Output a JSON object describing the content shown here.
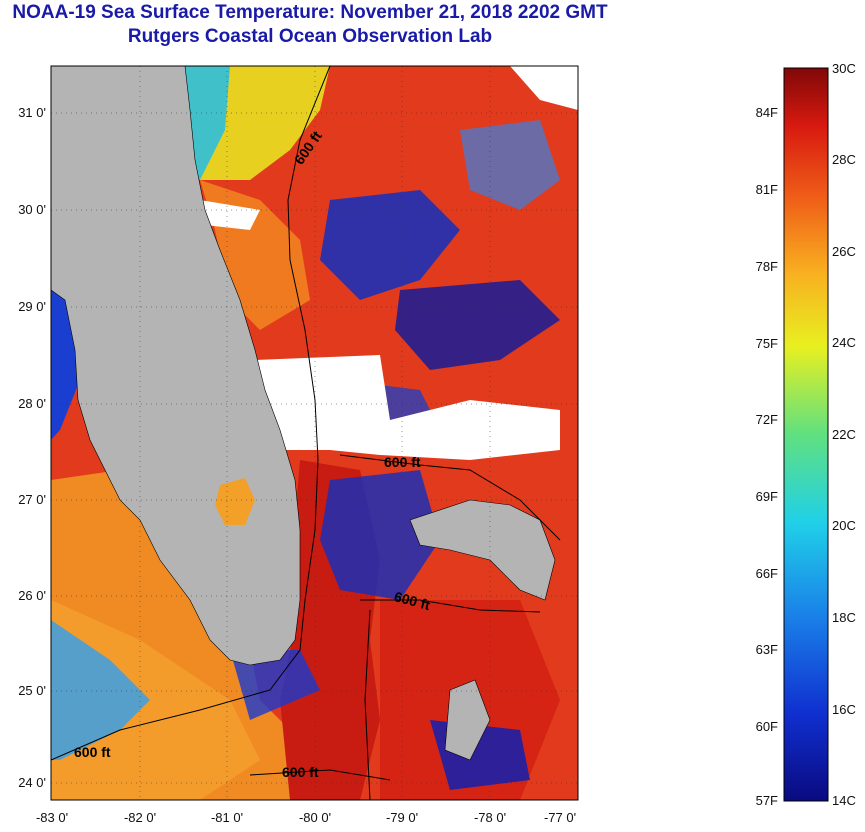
{
  "header": {
    "title": "NOAA-19 Sea Surface Temperature:  November 21, 2018 2202 GMT",
    "subtitle": "Rutgers Coastal Ocean Observation Lab"
  },
  "map": {
    "lat_ticks": [
      "31 0'",
      "30 0'",
      "29 0'",
      "28 0'",
      "27 0'",
      "26 0'",
      "25 0'",
      "24 0'"
    ],
    "lon_ticks": [
      "-83 0'",
      "-82 0'",
      "-81 0'",
      "-80 0'",
      "-79 0'",
      "-78 0'",
      "-77 0'"
    ],
    "contour_labels": [
      "600 ft",
      "600 ft",
      "600 ft",
      "600 ft",
      "600 ft"
    ],
    "colors": {
      "land": "#b4b4b4",
      "cloud": "#ffffff",
      "warm": "#e8331c",
      "hot": "#b51812",
      "orange": "#f07f1f",
      "cold": "#0a1a9e"
    }
  },
  "colorbar": {
    "celsius": [
      "30C",
      "28C",
      "26C",
      "24C",
      "22C",
      "20C",
      "18C",
      "16C",
      "14C"
    ],
    "fahrenheit": [
      "84F",
      "81F",
      "78F",
      "75F",
      "72F",
      "69F",
      "66F",
      "63F",
      "60F",
      "57F"
    ]
  }
}
